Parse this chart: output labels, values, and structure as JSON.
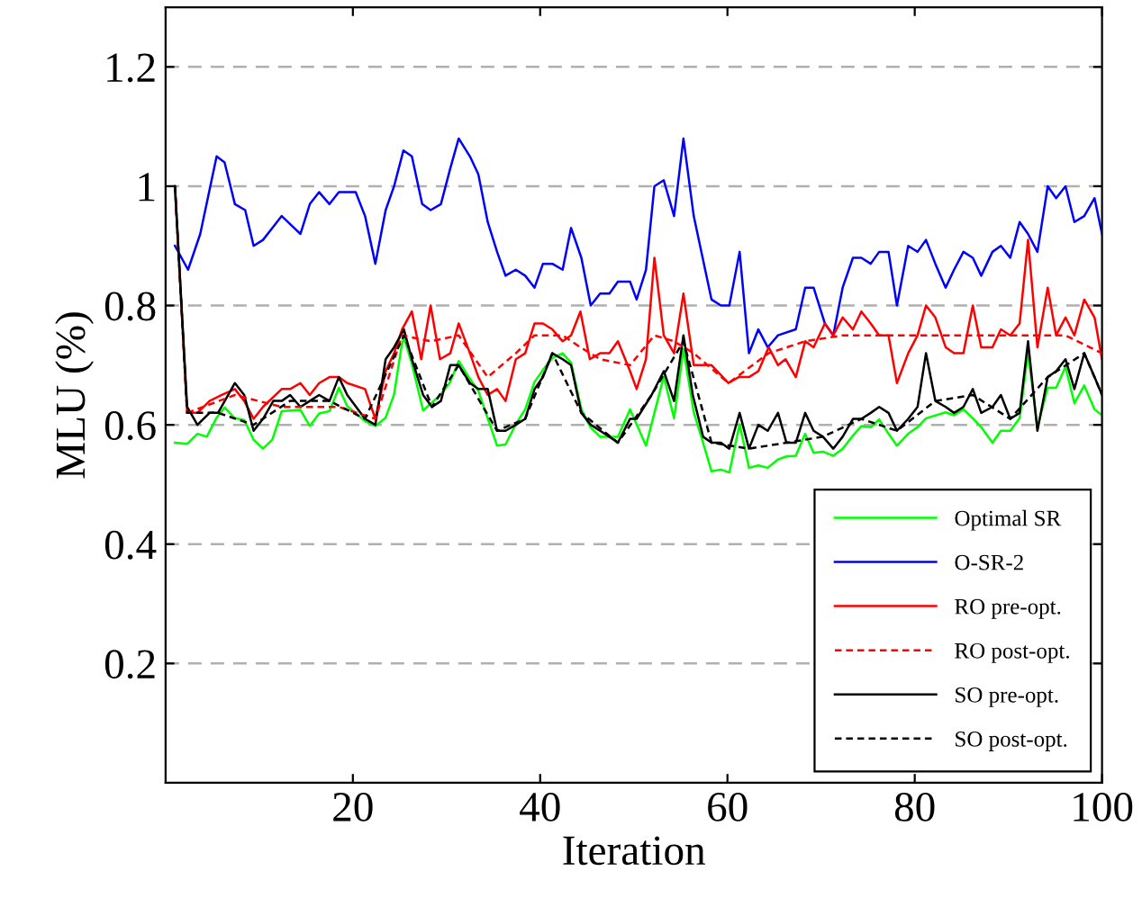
{
  "chart_data": {
    "type": "line",
    "xlabel": "Iteration",
    "ylabel": "MLU (%)",
    "xlim": [
      0,
      100
    ],
    "ylim": [
      0,
      1.3
    ],
    "xticks": [
      20,
      40,
      60,
      80,
      100
    ],
    "yticks": [
      0.2,
      0.4,
      0.6,
      0.8,
      1,
      1.2
    ],
    "grid": "y",
    "legend": "bottom right",
    "marker": "none",
    "series": [
      {
        "name": "Optimal SR",
        "color": "#00ff00",
        "line_style": "solid",
        "x": [
          1,
          2.3,
          3.4,
          4.4,
          5.45,
          6.3,
          7.4,
          8.4,
          9.4,
          10.4,
          11.4,
          12.4,
          14.4,
          15.4,
          16.4,
          17.5,
          18.5,
          19.4,
          21.3,
          22.4,
          23.5,
          24.4,
          25.2,
          25.45,
          26.3,
          27.5,
          29.4,
          30.4,
          31.3,
          32.5,
          33.4,
          34.4,
          35.4,
          36.3,
          37.4,
          38.4,
          39.4,
          40.3,
          41.3,
          42.4,
          43.3,
          44.4,
          45.4,
          46.4,
          47.4,
          48.3,
          49.6,
          50.3,
          51.3,
          53.2,
          54.3,
          55.3,
          56.4,
          57.4,
          58.3,
          59.3,
          60.2,
          61.3,
          62.3,
          63.3,
          64.3,
          65.4,
          66.3,
          67.3,
          68.3,
          69.2,
          70.2,
          71.3,
          72.3,
          73.4,
          74.3,
          75.3,
          76.2,
          77.2,
          78.1,
          79.3,
          80.3,
          81.2,
          83.3,
          84.2,
          85.2,
          86.2,
          87.1,
          88.3,
          89.2,
          90.2,
          91.2,
          92.1,
          93.1,
          94.2,
          95.1,
          96.1,
          97.05,
          98.1,
          99.2,
          100
        ],
        "values": [
          0.57,
          0.568,
          0.585,
          0.58,
          0.612,
          0.629,
          0.611,
          0.608,
          0.575,
          0.56,
          0.575,
          0.623,
          0.625,
          0.598,
          0.619,
          0.623,
          0.662,
          0.631,
          0.606,
          0.598,
          0.612,
          0.651,
          0.732,
          0.747,
          0.702,
          0.624,
          0.651,
          0.672,
          0.707,
          0.677,
          0.657,
          0.611,
          0.565,
          0.567,
          0.601,
          0.626,
          0.672,
          0.692,
          0.712,
          0.72,
          0.704,
          0.626,
          0.595,
          0.58,
          0.58,
          0.58,
          0.626,
          0.601,
          0.565,
          0.681,
          0.611,
          0.727,
          0.621,
          0.57,
          0.522,
          0.525,
          0.52,
          0.601,
          0.528,
          0.532,
          0.528,
          0.542,
          0.547,
          0.548,
          0.585,
          0.553,
          0.555,
          0.548,
          0.56,
          0.582,
          0.598,
          0.596,
          0.609,
          0.585,
          0.565,
          0.585,
          0.596,
          0.611,
          0.621,
          0.616,
          0.626,
          0.611,
          0.596,
          0.57,
          0.59,
          0.59,
          0.611,
          0.722,
          0.596,
          0.662,
          0.662,
          0.697,
          0.636,
          0.666,
          0.626,
          0.616
        ]
      },
      {
        "name": "O-SR-2",
        "color": "#0000ff",
        "line_style": "solid",
        "x": [
          1,
          2.4,
          3.7,
          5.45,
          6.3,
          7.4,
          8.5,
          9.4,
          10.4,
          12.4,
          14.4,
          15.4,
          16.4,
          17.5,
          18.5,
          20.3,
          21.3,
          22.4,
          23.5,
          24.4,
          25.4,
          26.3,
          27.4,
          28.3,
          29.4,
          30.4,
          31.3,
          32.5,
          33.4,
          34.4,
          35.4,
          36.3,
          37.4,
          38.4,
          39.4,
          40.3,
          41.3,
          42.4,
          43.3,
          44.4,
          45.4,
          46.4,
          47.4,
          48.3,
          49.6,
          50.3,
          51.3,
          52.2,
          53.2,
          54.3,
          55.3,
          56.4,
          58.3,
          59.3,
          60.2,
          61.3,
          62.3,
          63.3,
          64.3,
          65.4,
          67.3,
          68.3,
          69.2,
          70.4,
          71.3,
          72.3,
          73.4,
          74.3,
          75.3,
          76.2,
          77.2,
          78.1,
          79.3,
          80.3,
          81.2,
          82.2,
          83.3,
          84.2,
          85.2,
          86.2,
          87.1,
          88.3,
          89.2,
          90.2,
          91.2,
          92.1,
          93.1,
          94.2,
          95.1,
          96.1,
          97.05,
          98.1,
          99.2,
          100
        ],
        "values": [
          0.9,
          0.86,
          0.92,
          1.05,
          1.04,
          0.97,
          0.96,
          0.9,
          0.91,
          0.95,
          0.92,
          0.97,
          0.99,
          0.97,
          0.99,
          0.99,
          0.95,
          0.87,
          0.96,
          1.0,
          1.06,
          1.05,
          0.97,
          0.96,
          0.97,
          1.03,
          1.08,
          1.05,
          1.02,
          0.94,
          0.89,
          0.85,
          0.86,
          0.85,
          0.83,
          0.87,
          0.87,
          0.86,
          0.93,
          0.88,
          0.8,
          0.82,
          0.82,
          0.84,
          0.84,
          0.81,
          0.86,
          1.0,
          1.01,
          0.95,
          1.08,
          0.95,
          0.81,
          0.8,
          0.8,
          0.89,
          0.72,
          0.76,
          0.73,
          0.75,
          0.76,
          0.83,
          0.83,
          0.77,
          0.75,
          0.83,
          0.88,
          0.88,
          0.87,
          0.89,
          0.89,
          0.8,
          0.9,
          0.89,
          0.91,
          0.87,
          0.83,
          0.86,
          0.89,
          0.88,
          0.85,
          0.89,
          0.9,
          0.88,
          0.94,
          0.92,
          0.89,
          1.0,
          0.98,
          1.0,
          0.94,
          0.95,
          0.98,
          0.92
        ]
      },
      {
        "name": "RO pre-opt.",
        "color": "#ff0000",
        "line_style": "solid",
        "x": [
          1,
          2.3,
          3.4,
          4.7,
          6.0,
          7.4,
          8.4,
          9.4,
          10.4,
          12.4,
          13.3,
          14.4,
          15.4,
          16.4,
          17.5,
          18.5,
          19.4,
          21.3,
          22.4,
          23.5,
          24.4,
          25.25,
          26.3,
          27.3,
          28.3,
          29.3,
          30.4,
          31.3,
          32.5,
          33.4,
          34.4,
          35.4,
          36.3,
          37.4,
          38.4,
          39.4,
          40.3,
          41.3,
          42.4,
          43.3,
          44.3,
          45.3,
          46.4,
          47.4,
          48.3,
          49.6,
          50.3,
          51.3,
          52.2,
          53.2,
          54.3,
          55.3,
          56.4,
          58.3,
          60.1,
          61.2,
          62.3,
          63.3,
          64.4,
          65.4,
          66.2,
          67.3,
          68.3,
          69.2,
          70.4,
          71.3,
          72.3,
          73.4,
          74.3,
          75.3,
          76.2,
          77.2,
          78.1,
          79.3,
          80.3,
          81.2,
          82.2,
          83.3,
          84.2,
          85.2,
          86.2,
          87.1,
          88.3,
          89.2,
          90.2,
          91.2,
          92.1,
          93.1,
          94.2,
          95.1,
          96.1,
          97.05,
          98.1,
          99.2,
          100
        ],
        "values": [
          1.0,
          0.62,
          0.62,
          0.64,
          0.65,
          0.66,
          0.64,
          0.61,
          0.63,
          0.66,
          0.66,
          0.67,
          0.65,
          0.67,
          0.68,
          0.68,
          0.67,
          0.66,
          0.61,
          0.69,
          0.72,
          0.76,
          0.79,
          0.71,
          0.8,
          0.71,
          0.72,
          0.77,
          0.72,
          0.68,
          0.65,
          0.66,
          0.64,
          0.71,
          0.72,
          0.77,
          0.77,
          0.76,
          0.74,
          0.75,
          0.79,
          0.71,
          0.72,
          0.72,
          0.74,
          0.69,
          0.66,
          0.71,
          0.88,
          0.75,
          0.72,
          0.82,
          0.7,
          0.7,
          0.67,
          0.68,
          0.68,
          0.69,
          0.73,
          0.7,
          0.71,
          0.68,
          0.74,
          0.73,
          0.77,
          0.75,
          0.78,
          0.76,
          0.79,
          0.77,
          0.75,
          0.75,
          0.67,
          0.72,
          0.75,
          0.8,
          0.78,
          0.73,
          0.72,
          0.72,
          0.8,
          0.73,
          0.73,
          0.76,
          0.75,
          0.77,
          0.91,
          0.73,
          0.83,
          0.75,
          0.78,
          0.75,
          0.81,
          0.78,
          0.71
        ]
      },
      {
        "name": "RO post-opt.",
        "color": "#ff0000",
        "line_style": "dashed",
        "x": [
          2.3,
          7.4,
          12.4,
          18.5,
          22.4,
          25.25,
          28.3,
          31.3,
          34.4,
          37.4,
          39.4,
          42.4,
          44.3,
          46.4,
          49.6,
          52.2,
          54.3,
          56.4,
          60.1,
          64.4,
          68.3,
          72.3,
          76.2,
          80.3,
          84.2,
          88.3,
          92.1,
          96.1,
          100
        ],
        "values": [
          0.62,
          0.65,
          0.63,
          0.63,
          0.61,
          0.75,
          0.74,
          0.75,
          0.68,
          0.72,
          0.75,
          0.75,
          0.73,
          0.71,
          0.7,
          0.75,
          0.74,
          0.72,
          0.67,
          0.72,
          0.74,
          0.75,
          0.75,
          0.75,
          0.75,
          0.75,
          0.75,
          0.75,
          0.72
        ]
      },
      {
        "name": "SO pre-opt.",
        "color": "#000000",
        "line_style": "solid",
        "x": [
          1,
          2.3,
          3.4,
          4.7,
          5.6,
          7.4,
          8.4,
          9.4,
          10.4,
          11.5,
          12.4,
          13.3,
          14.4,
          15.4,
          16.4,
          17.5,
          18.5,
          19.4,
          21.3,
          22.4,
          23.5,
          24.4,
          25.45,
          26.3,
          27.5,
          28.45,
          29.4,
          30.4,
          31.3,
          32.5,
          33.4,
          34.4,
          35.4,
          36.3,
          37.4,
          38.4,
          39.4,
          40.3,
          41.3,
          42.4,
          43.3,
          44.4,
          45.4,
          46.4,
          47.4,
          48.3,
          49.6,
          50.3,
          51.9,
          53.2,
          54.3,
          55.3,
          56.3,
          57.4,
          58.3,
          59.3,
          60.2,
          61.3,
          62.3,
          63.3,
          64.3,
          65.4,
          66.3,
          67.3,
          68.3,
          69.2,
          70.2,
          71.3,
          72.3,
          73.4,
          74.3,
          75.3,
          76.2,
          77.2,
          78.1,
          79.3,
          80.3,
          81.2,
          82.2,
          83.3,
          84.2,
          85.2,
          86.2,
          87.1,
          88.3,
          89.2,
          90.2,
          91.2,
          92.1,
          93.1,
          94.2,
          95.1,
          96.1,
          97.05,
          98.1,
          99.2,
          100
        ],
        "values": [
          1.0,
          0.63,
          0.6,
          0.62,
          0.62,
          0.67,
          0.65,
          0.59,
          0.61,
          0.64,
          0.64,
          0.65,
          0.63,
          0.64,
          0.65,
          0.64,
          0.68,
          0.65,
          0.61,
          0.6,
          0.71,
          0.73,
          0.76,
          0.71,
          0.65,
          0.63,
          0.64,
          0.7,
          0.7,
          0.67,
          0.66,
          0.66,
          0.59,
          0.59,
          0.6,
          0.61,
          0.66,
          0.68,
          0.72,
          0.71,
          0.7,
          0.62,
          0.6,
          0.59,
          0.58,
          0.57,
          0.61,
          0.61,
          0.65,
          0.69,
          0.64,
          0.75,
          0.65,
          0.58,
          0.57,
          0.57,
          0.56,
          0.62,
          0.56,
          0.6,
          0.59,
          0.62,
          0.57,
          0.57,
          0.62,
          0.59,
          0.58,
          0.56,
          0.58,
          0.61,
          0.61,
          0.62,
          0.63,
          0.62,
          0.59,
          0.61,
          0.63,
          0.72,
          0.64,
          0.63,
          0.62,
          0.63,
          0.66,
          0.62,
          0.63,
          0.65,
          0.61,
          0.62,
          0.74,
          0.59,
          0.68,
          0.69,
          0.71,
          0.66,
          0.72,
          0.68,
          0.65
        ]
      },
      {
        "name": "SO post-opt.",
        "color": "#000000",
        "line_style": "dashed",
        "x": [
          1,
          2.3,
          5.6,
          9.4,
          13.3,
          17.5,
          21.3,
          25.45,
          28.45,
          31.3,
          35.4,
          38.4,
          41.3,
          44.4,
          48.3,
          51.9,
          55.3,
          58.3,
          62.3,
          66.3,
          70.2,
          74.3,
          78.1,
          82.2,
          86.2,
          90.2,
          94.2,
          98.1,
          100
        ],
        "values": [
          1.0,
          0.62,
          0.62,
          0.6,
          0.64,
          0.64,
          0.61,
          0.75,
          0.63,
          0.7,
          0.59,
          0.61,
          0.72,
          0.62,
          0.57,
          0.65,
          0.74,
          0.57,
          0.56,
          0.57,
          0.58,
          0.61,
          0.59,
          0.64,
          0.65,
          0.61,
          0.68,
          0.72,
          0.65
        ]
      }
    ]
  }
}
